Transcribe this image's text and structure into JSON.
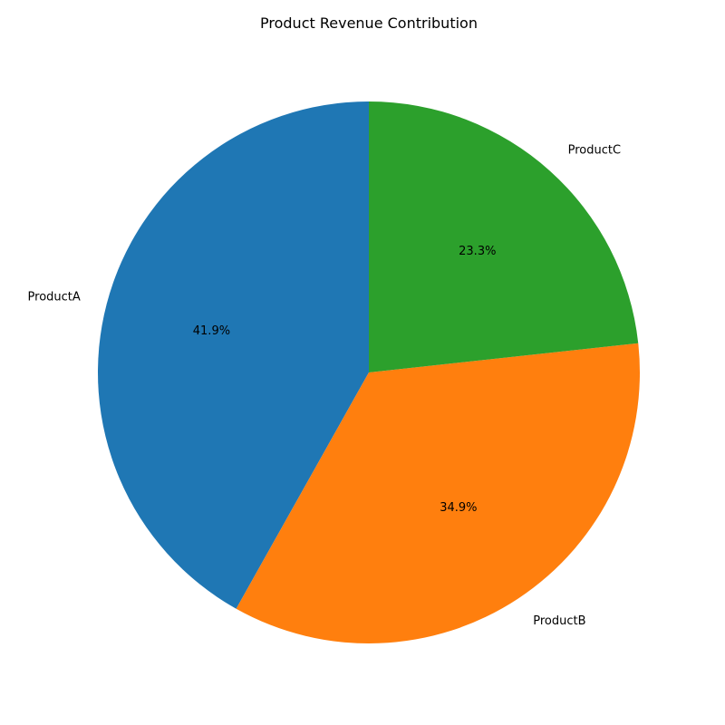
{
  "chart_data": {
    "type": "pie",
    "title": "Product Revenue Contribution",
    "categories": [
      "ProductA",
      "ProductB",
      "ProductC"
    ],
    "values": [
      41.9,
      34.9,
      23.3
    ],
    "percent_labels": [
      "41.9%",
      "34.9%",
      "23.3%"
    ],
    "colors": [
      "#1f77b4",
      "#ff7f0e",
      "#2ca02c"
    ],
    "start_angle_deg": 90,
    "direction": "counterclockwise",
    "legend": "none"
  }
}
